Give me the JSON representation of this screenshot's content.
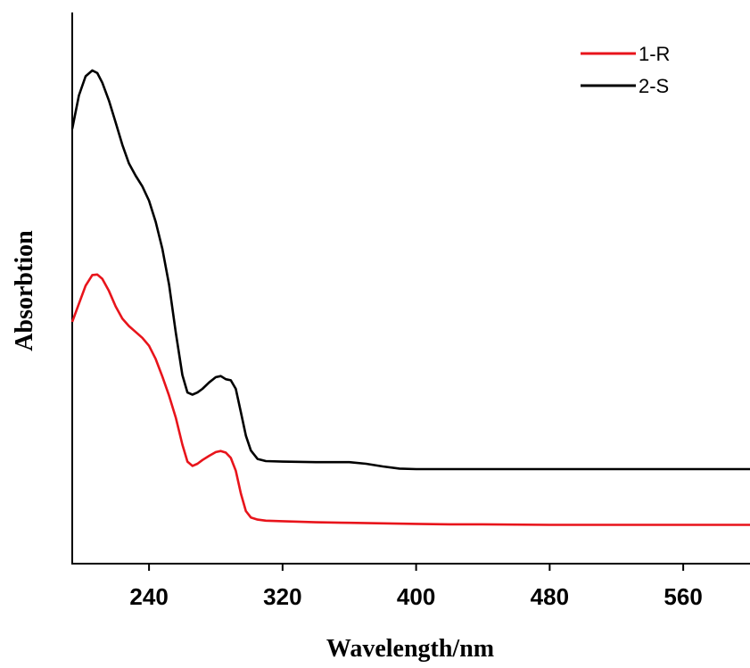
{
  "chart_data": {
    "type": "line",
    "xlabel": "Wavelength/nm",
    "ylabel": "Absorbtion",
    "xlim": [
      194,
      600
    ],
    "ylim": [
      0,
      1
    ],
    "xticks": [
      240,
      320,
      400,
      480,
      560
    ],
    "yticks_shown": false,
    "grid": false,
    "legend": {
      "placement": "top-right"
    },
    "series": [
      {
        "name": "1-R",
        "color": "#e8141b",
        "points": [
          [
            194,
            0.418
          ],
          [
            198,
            0.452
          ],
          [
            202,
            0.486
          ],
          [
            206,
            0.506
          ],
          [
            209,
            0.507
          ],
          [
            212,
            0.499
          ],
          [
            216,
            0.476
          ],
          [
            220,
            0.447
          ],
          [
            224,
            0.424
          ],
          [
            228,
            0.41
          ],
          [
            232,
            0.399
          ],
          [
            236,
            0.388
          ],
          [
            240,
            0.373
          ],
          [
            244,
            0.348
          ],
          [
            248,
            0.315
          ],
          [
            252,
            0.279
          ],
          [
            256,
            0.238
          ],
          [
            260,
            0.187
          ],
          [
            263,
            0.155
          ],
          [
            266,
            0.147
          ],
          [
            269,
            0.151
          ],
          [
            272,
            0.158
          ],
          [
            276,
            0.166
          ],
          [
            280,
            0.173
          ],
          [
            283,
            0.175
          ],
          [
            286,
            0.172
          ],
          [
            289,
            0.162
          ],
          [
            292,
            0.138
          ],
          [
            295,
            0.095
          ],
          [
            298,
            0.062
          ],
          [
            301,
            0.05
          ],
          [
            305,
            0.046
          ],
          [
            310,
            0.044
          ],
          [
            320,
            0.043
          ],
          [
            340,
            0.041
          ],
          [
            360,
            0.04
          ],
          [
            380,
            0.039
          ],
          [
            400,
            0.038
          ],
          [
            420,
            0.037
          ],
          [
            440,
            0.037
          ],
          [
            480,
            0.036
          ],
          [
            520,
            0.036
          ],
          [
            560,
            0.036
          ],
          [
            600,
            0.036
          ]
        ]
      },
      {
        "name": "2-S",
        "color": "#000000",
        "points": [
          [
            194,
            0.781
          ],
          [
            198,
            0.844
          ],
          [
            202,
            0.88
          ],
          [
            206,
            0.891
          ],
          [
            209,
            0.886
          ],
          [
            212,
            0.868
          ],
          [
            216,
            0.834
          ],
          [
            220,
            0.793
          ],
          [
            224,
            0.751
          ],
          [
            228,
            0.716
          ],
          [
            232,
            0.693
          ],
          [
            236,
            0.673
          ],
          [
            240,
            0.646
          ],
          [
            244,
            0.606
          ],
          [
            248,
            0.555
          ],
          [
            252,
            0.488
          ],
          [
            256,
            0.398
          ],
          [
            260,
            0.318
          ],
          [
            263,
            0.285
          ],
          [
            266,
            0.281
          ],
          [
            269,
            0.285
          ],
          [
            272,
            0.292
          ],
          [
            276,
            0.304
          ],
          [
            280,
            0.314
          ],
          [
            283,
            0.316
          ],
          [
            286,
            0.31
          ],
          [
            289,
            0.308
          ],
          [
            292,
            0.292
          ],
          [
            295,
            0.248
          ],
          [
            298,
            0.204
          ],
          [
            301,
            0.176
          ],
          [
            305,
            0.16
          ],
          [
            310,
            0.156
          ],
          [
            320,
            0.155
          ],
          [
            340,
            0.154
          ],
          [
            360,
            0.154
          ],
          [
            370,
            0.151
          ],
          [
            380,
            0.146
          ],
          [
            390,
            0.142
          ],
          [
            400,
            0.141
          ],
          [
            440,
            0.141
          ],
          [
            480,
            0.141
          ],
          [
            520,
            0.141
          ],
          [
            560,
            0.141
          ],
          [
            600,
            0.141
          ]
        ]
      }
    ]
  }
}
